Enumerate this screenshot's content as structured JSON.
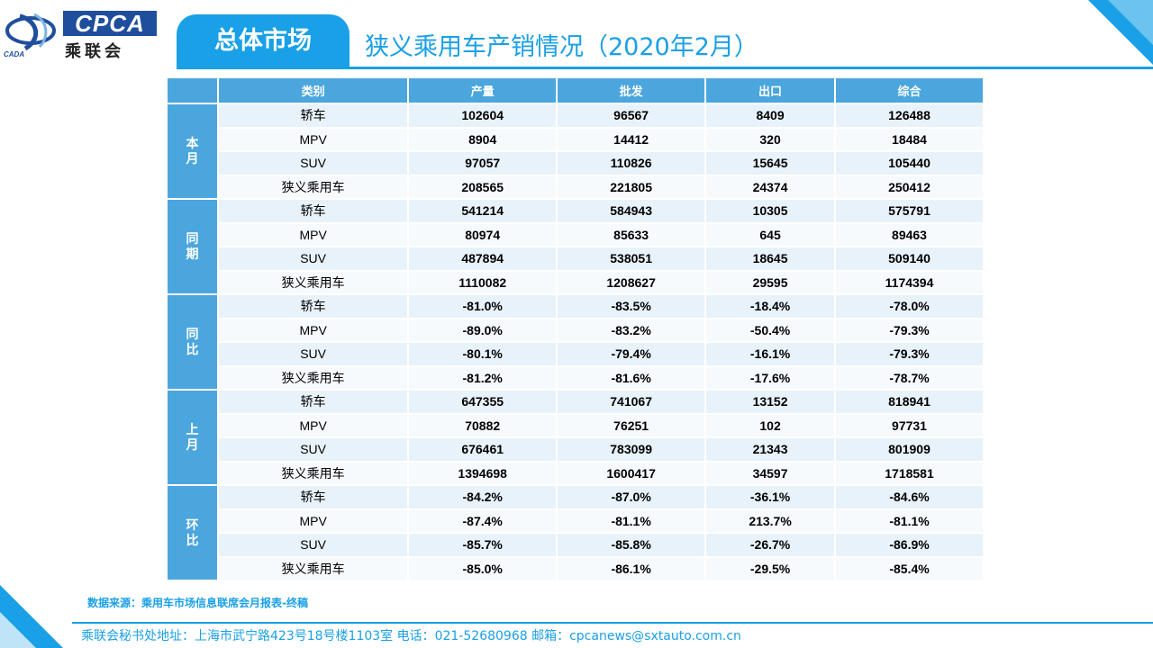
{
  "logo": {
    "brand_en": "CPCA",
    "brand_cn": "乘联会",
    "brand_small": "CADA"
  },
  "header": {
    "section": "总体市场",
    "title": "狭义乘用车产销情况（2020年2月）"
  },
  "colors": {
    "accent": "#1aa0e6",
    "header_cell": "#4ba6dd",
    "cell": "#e8f2fa"
  },
  "table": {
    "columns": [
      "类别",
      "产量",
      "批发",
      "出口",
      "综合"
    ],
    "groups": [
      {
        "label": "本月",
        "rows": [
          [
            "轿车",
            "102604",
            "96567",
            "8409",
            "126488"
          ],
          [
            "MPV",
            "8904",
            "14412",
            "320",
            "18484"
          ],
          [
            "SUV",
            "97057",
            "110826",
            "15645",
            "105440"
          ],
          [
            "狭义乘用车",
            "208565",
            "221805",
            "24374",
            "250412"
          ]
        ]
      },
      {
        "label": "同期",
        "rows": [
          [
            "轿车",
            "541214",
            "584943",
            "10305",
            "575791"
          ],
          [
            "MPV",
            "80974",
            "85633",
            "645",
            "89463"
          ],
          [
            "SUV",
            "487894",
            "538051",
            "18645",
            "509140"
          ],
          [
            "狭义乘用车",
            "1110082",
            "1208627",
            "29595",
            "1174394"
          ]
        ]
      },
      {
        "label": "同比",
        "rows": [
          [
            "轿车",
            "-81.0%",
            "-83.5%",
            "-18.4%",
            "-78.0%"
          ],
          [
            "MPV",
            "-89.0%",
            "-83.2%",
            "-50.4%",
            "-79.3%"
          ],
          [
            "SUV",
            "-80.1%",
            "-79.4%",
            "-16.1%",
            "-79.3%"
          ],
          [
            "狭义乘用车",
            "-81.2%",
            "-81.6%",
            "-17.6%",
            "-78.7%"
          ]
        ]
      },
      {
        "label": "上月",
        "rows": [
          [
            "轿车",
            "647355",
            "741067",
            "13152",
            "818941"
          ],
          [
            "MPV",
            "70882",
            "76251",
            "102",
            "97731"
          ],
          [
            "SUV",
            "676461",
            "783099",
            "21343",
            "801909"
          ],
          [
            "狭义乘用车",
            "1394698",
            "1600417",
            "34597",
            "1718581"
          ]
        ]
      },
      {
        "label": "环比",
        "rows": [
          [
            "轿车",
            "-84.2%",
            "-87.0%",
            "-36.1%",
            "-84.6%"
          ],
          [
            "MPV",
            "-87.4%",
            "-81.1%",
            "213.7%",
            "-81.1%"
          ],
          [
            "SUV",
            "-85.7%",
            "-85.8%",
            "-26.7%",
            "-86.9%"
          ],
          [
            "狭义乘用车",
            "-85.0%",
            "-86.1%",
            "-29.5%",
            "-85.4%"
          ]
        ]
      }
    ]
  },
  "source": "数据来源：乘用车市场信息联席会月报表-终稿",
  "footer": "乘联会秘书处地址：上海市武宁路423号18号楼1103室  电话：021-52680968   邮箱：cpcanews@sxtauto.com.cn"
}
